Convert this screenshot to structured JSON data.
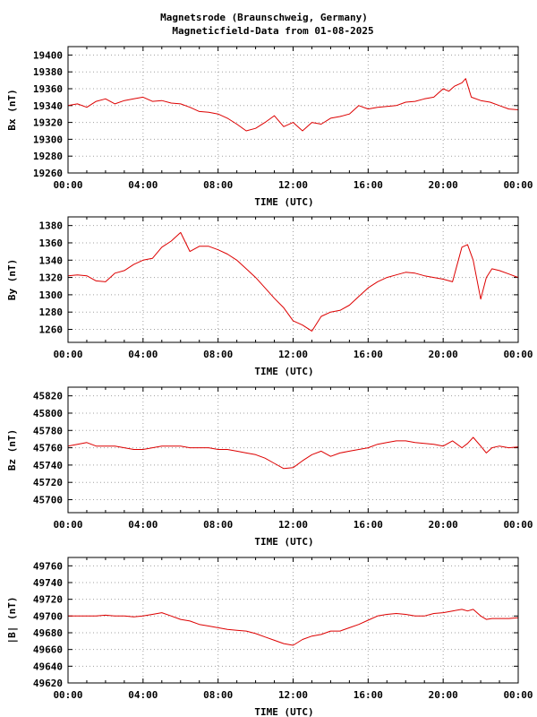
{
  "title": "Magnetsrode (Braunschweig, Germany)",
  "subtitle": "Magneticfield-Data from 01-08-2025",
  "colors": {
    "series": "#dd0000",
    "grid": "#a0a0a0",
    "axis": "#000000"
  },
  "chart_data": [
    {
      "type": "line",
      "ylabel": "Bx (nT)",
      "xlabel": "TIME (UTC)",
      "xticks": [
        "00:00",
        "04:00",
        "08:00",
        "12:00",
        "16:00",
        "20:00",
        "00:00"
      ],
      "yticks": [
        19260,
        19280,
        19300,
        19320,
        19340,
        19360,
        19380,
        19400
      ],
      "ylim": [
        19260,
        19410
      ],
      "xlim": [
        0,
        24
      ],
      "grid": true,
      "series": [
        {
          "x": [
            0,
            0.5,
            1,
            1.5,
            2,
            2.5,
            3,
            3.5,
            4,
            4.5,
            5,
            5.5,
            6,
            6.5,
            7,
            7.5,
            8,
            8.5,
            9,
            9.5,
            10,
            10.5,
            11,
            11.5,
            12,
            12.5,
            13,
            13.5,
            14,
            14.5,
            15,
            15.5,
            16,
            16.5,
            17,
            17.5,
            18,
            18.5,
            19,
            19.5,
            20,
            20.3,
            20.6,
            21,
            21.2,
            21.5,
            22,
            22.5,
            23,
            23.5,
            24
          ],
          "y": [
            19340,
            19342,
            19338,
            19345,
            19348,
            19342,
            19346,
            19348,
            19350,
            19345,
            19346,
            19343,
            19342,
            19338,
            19333,
            19332,
            19330,
            19325,
            19318,
            19310,
            19313,
            19320,
            19328,
            19315,
            19320,
            19310,
            19320,
            19318,
            19325,
            19327,
            19330,
            19340,
            19336,
            19338,
            19339,
            19340,
            19344,
            19345,
            19348,
            19350,
            19360,
            19357,
            19363,
            19367,
            19372,
            19350,
            19346,
            19344,
            19340,
            19336,
            19335
          ]
        }
      ]
    },
    {
      "type": "line",
      "ylabel": "By (nT)",
      "xlabel": "TIME (UTC)",
      "xticks": [
        "00:00",
        "04:00",
        "08:00",
        "12:00",
        "16:00",
        "20:00",
        "00:00"
      ],
      "yticks": [
        1260,
        1280,
        1300,
        1320,
        1340,
        1360,
        1380
      ],
      "ylim": [
        1245,
        1390
      ],
      "xlim": [
        0,
        24
      ],
      "grid": true,
      "series": [
        {
          "x": [
            0,
            0.5,
            1,
            1.5,
            2,
            2.5,
            3,
            3.5,
            4,
            4.5,
            5,
            5.5,
            6,
            6.5,
            7,
            7.5,
            8,
            8.5,
            9,
            9.5,
            10,
            10.5,
            11,
            11.5,
            12,
            12.5,
            13,
            13.5,
            14,
            14.5,
            15,
            15.5,
            16,
            16.5,
            17,
            17.5,
            18,
            18.5,
            19,
            19.5,
            20,
            20.5,
            21,
            21.3,
            21.6,
            22,
            22.3,
            22.6,
            23,
            23.5,
            24
          ],
          "y": [
            1322,
            1323,
            1322,
            1316,
            1315,
            1325,
            1328,
            1335,
            1340,
            1342,
            1355,
            1362,
            1372,
            1350,
            1356,
            1356,
            1352,
            1347,
            1340,
            1330,
            1320,
            1308,
            1296,
            1285,
            1270,
            1265,
            1258,
            1275,
            1280,
            1282,
            1288,
            1298,
            1308,
            1315,
            1320,
            1323,
            1326,
            1325,
            1322,
            1320,
            1318,
            1315,
            1355,
            1358,
            1340,
            1295,
            1320,
            1330,
            1328,
            1324,
            1320
          ]
        }
      ]
    },
    {
      "type": "line",
      "ylabel": "Bz (nT)",
      "xlabel": "TIME (UTC)",
      "xticks": [
        "00:00",
        "04:00",
        "08:00",
        "12:00",
        "16:00",
        "20:00",
        "00:00"
      ],
      "yticks": [
        45700,
        45720,
        45740,
        45760,
        45780,
        45800,
        45820
      ],
      "ylim": [
        45685,
        45830
      ],
      "xlim": [
        0,
        24
      ],
      "grid": true,
      "series": [
        {
          "x": [
            0,
            0.5,
            1,
            1.5,
            2,
            2.5,
            3,
            3.5,
            4,
            4.5,
            5,
            5.5,
            6,
            6.5,
            7,
            7.5,
            8,
            8.5,
            9,
            9.5,
            10,
            10.5,
            11,
            11.5,
            12,
            12.5,
            13,
            13.5,
            14,
            14.5,
            15,
            15.5,
            16,
            16.5,
            17,
            17.5,
            18,
            18.5,
            19,
            19.5,
            20,
            20.5,
            21,
            21.3,
            21.6,
            22,
            22.3,
            22.6,
            23,
            23.5,
            24
          ],
          "y": [
            45762,
            45764,
            45766,
            45762,
            45762,
            45762,
            45760,
            45758,
            45758,
            45760,
            45762,
            45762,
            45762,
            45760,
            45760,
            45760,
            45758,
            45758,
            45756,
            45754,
            45752,
            45748,
            45742,
            45736,
            45737,
            45745,
            45752,
            45756,
            45750,
            45754,
            45756,
            45758,
            45760,
            45764,
            45766,
            45768,
            45768,
            45766,
            45765,
            45764,
            45762,
            45768,
            45760,
            45765,
            45772,
            45762,
            45754,
            45760,
            45762,
            45760,
            45761
          ]
        }
      ]
    },
    {
      "type": "line",
      "ylabel": "|B| (nT)",
      "xlabel": "TIME (UTC)",
      "xticks": [
        "00:00",
        "04:00",
        "08:00",
        "12:00",
        "16:00",
        "20:00",
        "00:00"
      ],
      "yticks": [
        49620,
        49640,
        49660,
        49680,
        49700,
        49720,
        49740,
        49760
      ],
      "ylim": [
        49620,
        49770
      ],
      "xlim": [
        0,
        24
      ],
      "grid": true,
      "series": [
        {
          "x": [
            0,
            0.5,
            1,
            1.5,
            2,
            2.5,
            3,
            3.5,
            4,
            4.5,
            5,
            5.5,
            6,
            6.5,
            7,
            7.5,
            8,
            8.5,
            9,
            9.5,
            10,
            10.5,
            11,
            11.5,
            12,
            12.5,
            13,
            13.5,
            14,
            14.5,
            15,
            15.5,
            16,
            16.5,
            17,
            17.5,
            18,
            18.5,
            19,
            19.5,
            20,
            20.5,
            21,
            21.3,
            21.6,
            22,
            22.3,
            22.6,
            23,
            23.5,
            24
          ],
          "y": [
            49700,
            49700,
            49700,
            49700,
            49701,
            49700,
            49700,
            49699,
            49700,
            49702,
            49704,
            49700,
            49696,
            49694,
            49690,
            49688,
            49686,
            49684,
            49683,
            49682,
            49679,
            49675,
            49671,
            49667,
            49665,
            49672,
            49676,
            49678,
            49682,
            49682,
            49686,
            49690,
            49695,
            49700,
            49702,
            49703,
            49702,
            49700,
            49700,
            49703,
            49704,
            49706,
            49708,
            49706,
            49708,
            49700,
            49696,
            49697,
            49697,
            49697,
            49698
          ]
        }
      ]
    }
  ]
}
